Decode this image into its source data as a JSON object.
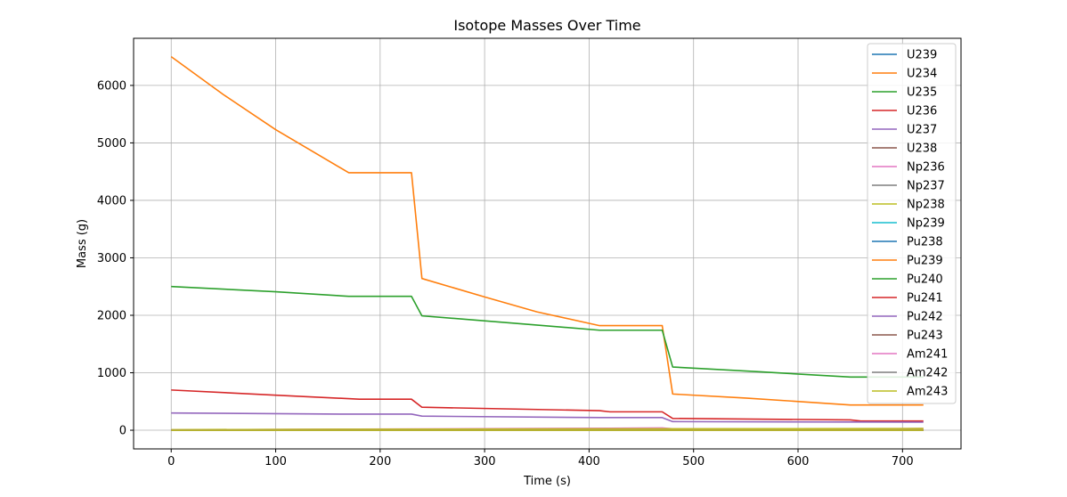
{
  "chart_data": {
    "type": "line",
    "title": "Isotope Masses Over Time",
    "xlabel": "Time (s)",
    "ylabel": "Mass (g)",
    "xlim": [
      -36,
      756
    ],
    "ylim": [
      -325,
      6820
    ],
    "xticks": [
      0,
      100,
      200,
      300,
      400,
      500,
      600,
      700
    ],
    "yticks": [
      0,
      1000,
      2000,
      3000,
      4000,
      5000,
      6000
    ],
    "grid": true,
    "legend_position": "top-right",
    "series": [
      {
        "name": "U239",
        "color": "#1f77b4",
        "points": [
          [
            0,
            0
          ],
          [
            720,
            0
          ]
        ]
      },
      {
        "name": "U234",
        "color": "#ff7f0e",
        "points": [
          [
            0,
            6500
          ],
          [
            50,
            5840
          ],
          [
            100,
            5230
          ],
          [
            170,
            4480
          ],
          [
            230,
            4480
          ],
          [
            240,
            2640
          ],
          [
            300,
            2320
          ],
          [
            350,
            2060
          ],
          [
            410,
            1820
          ],
          [
            470,
            1820
          ],
          [
            480,
            630
          ],
          [
            550,
            560
          ],
          [
            650,
            440
          ],
          [
            720,
            440
          ]
        ]
      },
      {
        "name": "U235",
        "color": "#2ca02c",
        "points": [
          [
            0,
            2500
          ],
          [
            100,
            2410
          ],
          [
            170,
            2330
          ],
          [
            230,
            2330
          ],
          [
            240,
            1990
          ],
          [
            330,
            1860
          ],
          [
            410,
            1740
          ],
          [
            470,
            1740
          ],
          [
            480,
            1100
          ],
          [
            560,
            1020
          ],
          [
            650,
            925
          ],
          [
            720,
            925
          ]
        ]
      },
      {
        "name": "U236",
        "color": "#d62728",
        "points": [
          [
            0,
            700
          ],
          [
            100,
            610
          ],
          [
            180,
            540
          ],
          [
            230,
            540
          ],
          [
            240,
            400
          ],
          [
            410,
            340
          ],
          [
            420,
            320
          ],
          [
            470,
            320
          ],
          [
            480,
            205
          ],
          [
            650,
            180
          ],
          [
            660,
            160
          ],
          [
            720,
            160
          ]
        ]
      },
      {
        "name": "U237",
        "color": "#9467bd",
        "points": [
          [
            0,
            300
          ],
          [
            170,
            280
          ],
          [
            230,
            280
          ],
          [
            240,
            245
          ],
          [
            410,
            220
          ],
          [
            470,
            220
          ],
          [
            480,
            150
          ],
          [
            720,
            140
          ]
        ]
      },
      {
        "name": "U238",
        "color": "#8c564b",
        "points": [
          [
            0,
            0
          ],
          [
            720,
            0
          ]
        ]
      },
      {
        "name": "Np236",
        "color": "#e377c2",
        "points": [
          [
            0,
            5
          ],
          [
            180,
            20
          ],
          [
            420,
            35
          ],
          [
            470,
            40
          ],
          [
            480,
            25
          ],
          [
            720,
            30
          ]
        ]
      },
      {
        "name": "Np237",
        "color": "#7f7f7f",
        "points": [
          [
            0,
            3
          ],
          [
            720,
            8
          ]
        ]
      },
      {
        "name": "Np238",
        "color": "#bcbd22",
        "points": [
          [
            0,
            10
          ],
          [
            180,
            18
          ],
          [
            720,
            30
          ]
        ]
      },
      {
        "name": "Np239",
        "color": "#17becf",
        "points": [
          [
            0,
            0
          ],
          [
            720,
            0
          ]
        ]
      },
      {
        "name": "Pu238",
        "color": "#1f77b4",
        "points": [
          [
            0,
            0
          ],
          [
            720,
            0
          ]
        ]
      },
      {
        "name": "Pu239",
        "color": "#ff7f0e",
        "points": [
          [
            0,
            0
          ],
          [
            720,
            0
          ]
        ]
      },
      {
        "name": "Pu240",
        "color": "#2ca02c",
        "points": [
          [
            0,
            0
          ],
          [
            720,
            0
          ]
        ]
      },
      {
        "name": "Pu241",
        "color": "#d62728",
        "points": [
          [
            0,
            0
          ],
          [
            720,
            0
          ]
        ]
      },
      {
        "name": "Pu242",
        "color": "#9467bd",
        "points": [
          [
            0,
            0
          ],
          [
            720,
            0
          ]
        ]
      },
      {
        "name": "Pu243",
        "color": "#8c564b",
        "points": [
          [
            0,
            0
          ],
          [
            720,
            0
          ]
        ]
      },
      {
        "name": "Am241",
        "color": "#e377c2",
        "points": [
          [
            0,
            0
          ],
          [
            720,
            0
          ]
        ]
      },
      {
        "name": "Am242",
        "color": "#7f7f7f",
        "points": [
          [
            0,
            0
          ],
          [
            720,
            0
          ]
        ]
      },
      {
        "name": "Am243",
        "color": "#bcbd22",
        "points": [
          [
            0,
            0
          ],
          [
            720,
            0
          ]
        ]
      }
    ]
  }
}
